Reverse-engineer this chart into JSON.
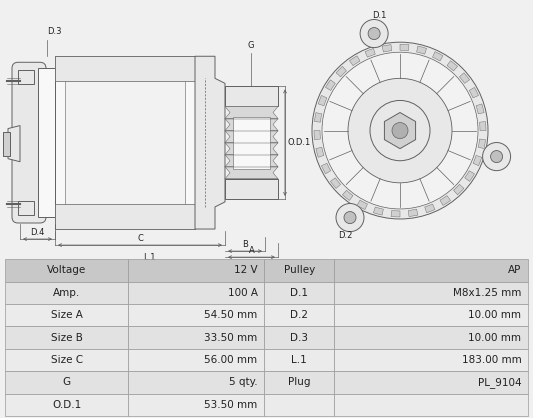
{
  "bg_color": "#f0f0f0",
  "diagram_bg": "#f0f0f0",
  "table_header_bg": "#c8c8c8",
  "table_row_odd": "#e2e2e2",
  "table_row_even": "#ebebeb",
  "table_border": "#999999",
  "line_color": "#606060",
  "fill_light": "#f8f8f8",
  "fill_mid": "#e8e8e8",
  "fill_dark": "#d0d0d0",
  "text_color": "#222222",
  "table_fontsize": 7.5,
  "label_fontsize": 6.0,
  "table_data": [
    [
      "Voltage",
      "12 V",
      "Pulley",
      "AP"
    ],
    [
      "Amp.",
      "100 A",
      "D.1",
      "M8x1.25 mm"
    ],
    [
      "Size A",
      "54.50 mm",
      "D.2",
      "10.00 mm"
    ],
    [
      "Size B",
      "33.50 mm",
      "D.3",
      "10.00 mm"
    ],
    [
      "Size C",
      "56.00 mm",
      "L.1",
      "183.00 mm"
    ],
    [
      "G",
      "5 qty.",
      "Plug",
      "PL_9104"
    ],
    [
      "O.D.1",
      "53.50 mm",
      "",
      ""
    ]
  ]
}
